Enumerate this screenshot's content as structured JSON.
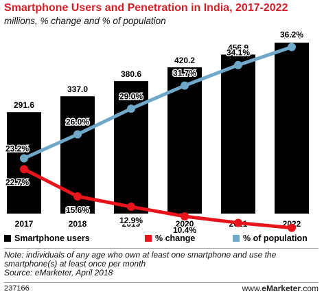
{
  "header": {
    "title": "Smartphone Users and Penetration in India, 2017-2022",
    "subtitle": "millions, % change and % of population"
  },
  "chart_data": {
    "type": "bar",
    "categories": [
      "2017",
      "2018",
      "2019",
      "2020",
      "2021",
      "2022"
    ],
    "series": [
      {
        "name": "Smartphone users",
        "kind": "bar",
        "values": [
          291.6,
          337.0,
          380.6,
          420.2,
          456.9,
          490.9
        ],
        "labels": [
          "291.6",
          "337.0",
          "380.6",
          "420.2",
          "456.9",
          "490.9"
        ],
        "color": "#000000"
      },
      {
        "name": "% change",
        "kind": "line",
        "values": [
          22.7,
          15.6,
          12.9,
          10.4,
          8.7,
          7.4
        ],
        "labels": [
          "22.7%",
          "15.6%",
          "12.9%",
          "10.4%",
          "8.7%",
          "7.4%"
        ],
        "color": "#e8141b"
      },
      {
        "name": "% of population",
        "kind": "line",
        "values": [
          23.2,
          26.0,
          29.0,
          31.7,
          34.1,
          36.2
        ],
        "labels": [
          "23.2%",
          "26.0%",
          "29.0%",
          "31.7%",
          "34.1%",
          "36.2%"
        ],
        "color": "#6fa8c9"
      }
    ],
    "bar_ylim": [
      0,
      500
    ],
    "grid": false,
    "legend_position": "bottom"
  },
  "legend": {
    "items": [
      {
        "label": "Smartphone users",
        "color": "#000000"
      },
      {
        "label": "% change",
        "color": "#e8141b"
      },
      {
        "label": "% of population",
        "color": "#6fa8c9"
      }
    ]
  },
  "footer": {
    "note": "Note: individuals of any age who own at least one smartphone and use the smartphone(s) at least once per month",
    "source": "Source: eMarketer, April 2018",
    "id": "237166",
    "brand_prefix": "www.",
    "brand_name": "eMarketer",
    "brand_suffix": ".com"
  }
}
